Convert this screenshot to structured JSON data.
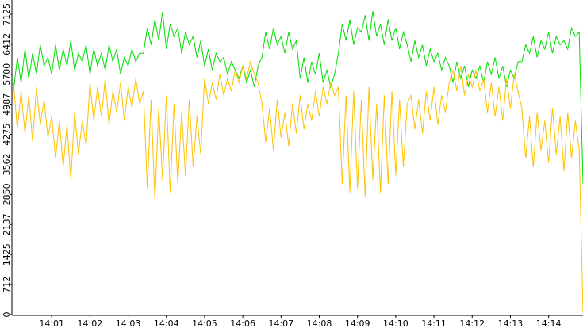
{
  "chart_data": {
    "type": "line",
    "categories": [
      null,
      null,
      null,
      null,
      null,
      null,
      null,
      null,
      null,
      null,
      "14:01",
      null,
      null,
      null,
      null,
      null,
      null,
      null,
      null,
      null,
      "14:02",
      null,
      null,
      null,
      null,
      null,
      null,
      null,
      null,
      null,
      "14:03",
      null,
      null,
      null,
      null,
      null,
      null,
      null,
      null,
      null,
      "14:04",
      null,
      null,
      null,
      null,
      null,
      null,
      null,
      null,
      null,
      "14:05",
      null,
      null,
      null,
      null,
      null,
      null,
      null,
      null,
      null,
      "14:06",
      null,
      null,
      null,
      null,
      null,
      null,
      null,
      null,
      null,
      "14:07",
      null,
      null,
      null,
      null,
      null,
      null,
      null,
      null,
      null,
      "14:08",
      null,
      null,
      null,
      null,
      null,
      null,
      null,
      null,
      null,
      "14:09",
      null,
      null,
      null,
      null,
      null,
      null,
      null,
      null,
      null,
      "14:10",
      null,
      null,
      null,
      null,
      null,
      null,
      null,
      null,
      null,
      "14:11",
      null,
      null,
      null,
      null,
      null,
      null,
      null,
      null,
      null,
      "14:12",
      null,
      null,
      null,
      null,
      null,
      null,
      null,
      null,
      null,
      "14:13",
      null,
      null,
      null,
      null,
      null,
      null,
      null,
      null,
      null,
      "14:14",
      null,
      null,
      null,
      null,
      null,
      null,
      null,
      null,
      null
    ],
    "series": [
      {
        "color": "#00dd00",
        "values": [
          5300,
          6100,
          5500,
          6300,
          5600,
          6200,
          5700,
          6400,
          5900,
          6100,
          5700,
          6400,
          5800,
          6300,
          5900,
          6500,
          5800,
          6200,
          6000,
          6400,
          5700,
          6300,
          5900,
          6200,
          5800,
          6400,
          6000,
          6300,
          5700,
          6100,
          5900,
          6300,
          6000,
          6200,
          6200,
          6800,
          6400,
          7000,
          6500,
          7180,
          6300,
          6900,
          6600,
          6800,
          6200,
          6700,
          6400,
          6600,
          6100,
          6500,
          5900,
          6300,
          5800,
          6200,
          6000,
          6100,
          5700,
          6000,
          5800,
          5600,
          5900,
          5500,
          5800,
          5400,
          5900,
          6100,
          6700,
          6300,
          6800,
          6400,
          6600,
          6200,
          6700,
          6300,
          6500,
          5600,
          6100,
          5500,
          6000,
          5700,
          6200,
          5500,
          5800,
          5400,
          5700,
          6200,
          6900,
          6500,
          7000,
          6400,
          6800,
          6700,
          7100,
          6500,
          7200,
          6600,
          6900,
          6400,
          7000,
          6500,
          6800,
          6300,
          6700,
          6400,
          6000,
          6500,
          6100,
          6400,
          5900,
          6300,
          6000,
          6200,
          5800,
          6100,
          5900,
          5500,
          6000,
          5600,
          5900,
          5400,
          5800,
          5600,
          5900,
          5500,
          6000,
          5700,
          6100,
          5600,
          5900,
          5400,
          5800,
          5600,
          6000,
          6000,
          6400,
          6200,
          6600,
          6100,
          6500,
          6300,
          6700,
          6200,
          6600,
          6400,
          6500,
          6300,
          6800,
          6600,
          6700,
          3100
        ]
      },
      {
        "color": "#ffc000",
        "values": [
          5500,
          4400,
          5300,
          4300,
          5200,
          4100,
          5400,
          4500,
          5100,
          4200,
          4700,
          3700,
          4600,
          3500,
          4500,
          3200,
          4800,
          3800,
          4600,
          4000,
          5500,
          4600,
          5400,
          4700,
          5600,
          4500,
          5300,
          4800,
          5500,
          4600,
          5400,
          4900,
          5600,
          5000,
          5300,
          3000,
          5100,
          2700,
          4900,
          3200,
          5200,
          2900,
          5000,
          3100,
          4800,
          3300,
          5100,
          3500,
          4700,
          3800,
          5600,
          5000,
          5500,
          5100,
          5700,
          5200,
          5600,
          5300,
          5800,
          5500,
          5900,
          5600,
          6000,
          5700,
          5500,
          5000,
          4100,
          4900,
          3900,
          5100,
          4200,
          4800,
          4000,
          5000,
          4300,
          5200,
          4400,
          5000,
          4600,
          5300,
          4700,
          5400,
          5000,
          5500,
          5200,
          5400,
          3100,
          5200,
          2900,
          5300,
          3000,
          5100,
          2800,
          5400,
          3200,
          5000,
          2900,
          5200,
          3100,
          5300,
          3300,
          5100,
          3500,
          5000,
          5200,
          4400,
          5100,
          4300,
          5300,
          4600,
          5400,
          4500,
          5200,
          4800,
          5500,
          5800,
          5300,
          5900,
          5200,
          5700,
          5400,
          5800,
          5300,
          5600,
          4800,
          5500,
          4700,
          5400,
          4600,
          5600,
          4900,
          5700,
          5300,
          4900,
          3700,
          4700,
          3500,
          4800,
          3900,
          4600,
          3600,
          4900,
          3800,
          4700,
          3400,
          4800,
          3700,
          4600,
          3900,
          40
        ]
      }
    ],
    "ylim": [
      0,
      7125
    ],
    "yticks": [
      0,
      712,
      1425,
      2137,
      2850,
      3562,
      4275,
      4987,
      5700,
      6412,
      7125
    ]
  }
}
